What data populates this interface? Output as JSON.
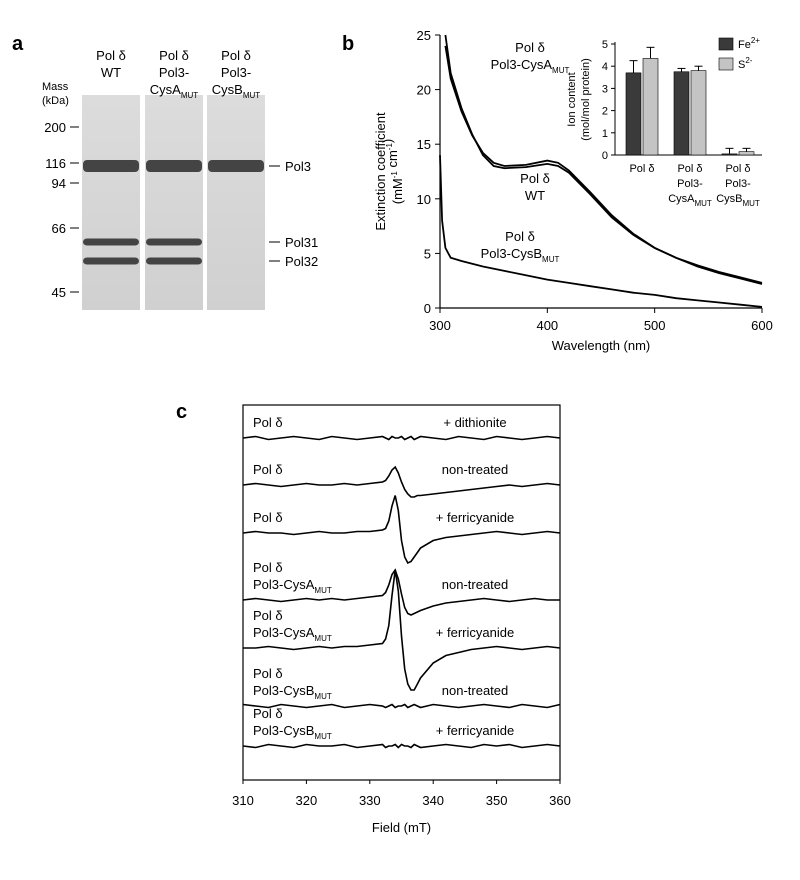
{
  "panel_labels": [
    "a",
    "b",
    "c"
  ],
  "gel": {
    "mass_title": [
      "Mass",
      "(kDa)"
    ],
    "lanes": [
      [
        [
          {
            "t": "Pol δ"
          }
        ],
        [
          {
            "t": "WT"
          }
        ]
      ],
      [
        [
          {
            "t": "Pol δ"
          }
        ],
        [
          {
            "t": "Pol3-"
          }
        ],
        [
          {
            "t": "CysA",
            "sub": "MUT"
          }
        ]
      ],
      [
        [
          {
            "t": "Pol δ"
          }
        ],
        [
          {
            "t": "Pol3-"
          }
        ],
        [
          {
            "t": "CysB",
            "sub": "MUT"
          }
        ]
      ]
    ],
    "markers": [
      200,
      116,
      94,
      66,
      45
    ],
    "bands": [
      "Pol3",
      "Pol31",
      "Pol32"
    ]
  },
  "chart_data": [
    {
      "type": "line",
      "xlabel": "Wavelength (nm)",
      "ylabel": [
        [
          {
            "t": "Extinction coefficient"
          }
        ],
        [
          {
            "t": "(mM",
            "sup": "-1"
          },
          {
            "t": " cm",
            "sup": "-1"
          },
          {
            "t": ")"
          }
        ]
      ],
      "xlim": [
        300,
        600
      ],
      "xticks": [
        300,
        400,
        500,
        600
      ],
      "ylim": [
        0,
        25
      ],
      "yticks": [
        0,
        5,
        10,
        15,
        20,
        25
      ],
      "series": [
        {
          "label": [
            [
              {
                "t": "Pol δ"
              }
            ],
            [
              {
                "t": "WT"
              }
            ]
          ],
          "color": "#000000",
          "x": [
            305,
            310,
            320,
            330,
            340,
            350,
            360,
            380,
            400,
            410,
            420,
            440,
            460,
            480,
            500,
            520,
            540,
            560,
            580,
            600
          ],
          "values": [
            24,
            21,
            18,
            15.8,
            14.2,
            13.3,
            13.0,
            13.1,
            13.5,
            13.3,
            12.6,
            10.6,
            8.5,
            6.8,
            5.5,
            4.6,
            3.9,
            3.3,
            2.8,
            2.3
          ]
        },
        {
          "label": [
            [
              {
                "t": "Pol δ"
              }
            ],
            [
              {
                "t": "Pol3-CysA",
                "sub": "MUT"
              }
            ]
          ],
          "color": "#000000",
          "x": [
            305,
            310,
            320,
            330,
            340,
            350,
            360,
            380,
            400,
            410,
            420,
            440,
            460,
            480,
            500,
            520,
            540,
            560,
            580,
            600
          ],
          "values": [
            25,
            21.5,
            18.3,
            15.9,
            14.0,
            13.0,
            12.8,
            12.9,
            13.2,
            13.0,
            12.4,
            10.4,
            8.3,
            6.7,
            5.5,
            4.6,
            3.8,
            3.2,
            2.7,
            2.2
          ]
        },
        {
          "label": [
            [
              {
                "t": "Pol δ"
              }
            ],
            [
              {
                "t": "Pol3-CysB",
                "sub": "MUT"
              }
            ]
          ],
          "color": "#000000",
          "x": [
            300,
            302,
            305,
            310,
            320,
            340,
            360,
            380,
            400,
            420,
            440,
            460,
            480,
            500,
            520,
            540,
            560,
            580,
            600
          ],
          "values": [
            14,
            8,
            5.5,
            4.6,
            4.3,
            3.8,
            3.4,
            3.0,
            2.6,
            2.3,
            2.0,
            1.7,
            1.4,
            1.2,
            0.9,
            0.7,
            0.5,
            0.3,
            0.1
          ]
        }
      ]
    },
    {
      "type": "bar",
      "ylabel": [
        [
          {
            "t": "Ion content"
          }
        ],
        [
          {
            "t": "(mol/mol protein)"
          }
        ]
      ],
      "categories": [
        [
          [
            {
              "t": "Pol δ"
            }
          ]
        ],
        [
          [
            {
              "t": "Pol δ"
            }
          ],
          [
            {
              "t": "Pol3-"
            }
          ],
          [
            {
              "t": "CysA",
              "sub": "MUT"
            }
          ]
        ],
        [
          [
            {
              "t": "Pol δ"
            }
          ],
          [
            {
              "t": "Pol3-"
            }
          ],
          [
            {
              "t": "CysB",
              "sub": "MUT"
            }
          ]
        ]
      ],
      "ylim": [
        0,
        5
      ],
      "yticks": [
        0,
        1,
        2,
        3,
        4,
        5
      ],
      "legend": "right",
      "series": [
        {
          "name": [
            {
              "t": "Fe",
              "sup": "2+"
            }
          ],
          "color": "#3a3a3a",
          "values": [
            3.7,
            3.75,
            0.05
          ],
          "errors": [
            0.55,
            0.15,
            0.25
          ]
        },
        {
          "name": [
            {
              "t": "S",
              "sup": "2-"
            }
          ],
          "color": "#c4c4c4",
          "values": [
            4.35,
            3.8,
            0.15
          ],
          "errors": [
            0.5,
            0.2,
            0.15
          ]
        }
      ]
    },
    {
      "type": "line",
      "xlabel": "Field (mT)",
      "xlim": [
        310,
        360
      ],
      "xticks": [
        310,
        320,
        330,
        340,
        350,
        360
      ],
      "x": [
        310,
        312,
        314,
        316,
        318,
        320,
        322,
        324,
        326,
        328,
        330,
        332,
        332.5,
        333,
        333.5,
        334,
        334.5,
        335,
        335.5,
        336,
        336.5,
        337,
        337.5,
        338,
        340,
        342,
        344,
        346,
        348,
        350,
        352,
        354,
        356,
        358,
        360
      ],
      "series": [
        {
          "label": [
            [
              {
                "t": "Pol δ"
              }
            ]
          ],
          "condition": "+ dithionite",
          "color": "#000000",
          "values": [
            0,
            1,
            -1,
            0,
            1,
            0,
            -1,
            1,
            0,
            -1,
            0,
            1,
            0,
            -1,
            1,
            0,
            0,
            1,
            -1,
            0,
            1,
            -1,
            0,
            1,
            0,
            -1,
            1,
            0,
            -1,
            1,
            0,
            -1,
            0,
            1,
            0
          ]
        },
        {
          "label": [
            [
              {
                "t": "Pol δ"
              }
            ]
          ],
          "condition": "non-treated",
          "color": "#000000",
          "values": [
            0,
            1,
            0,
            -1,
            0,
            1,
            0,
            0,
            1,
            0,
            1,
            2,
            3,
            6,
            10,
            12,
            8,
            2,
            -3,
            -6,
            -8,
            -8,
            -7,
            -7,
            -6,
            -5,
            -4,
            -3,
            -2,
            -1,
            0,
            -1,
            0,
            1,
            0
          ]
        },
        {
          "label": [
            [
              {
                "t": "Pol δ"
              }
            ]
          ],
          "condition": "+ ferricyanide",
          "color": "#000000",
          "values": [
            0,
            1,
            0,
            0,
            -1,
            0,
            1,
            0,
            0,
            1,
            1,
            2,
            3,
            8,
            18,
            25,
            15,
            -5,
            -16,
            -20,
            -19,
            -16,
            -13,
            -10,
            -5,
            -3,
            -2,
            -1,
            0,
            1,
            0,
            -1,
            0,
            1,
            0
          ]
        },
        {
          "label": [
            [
              {
                "t": "Pol δ"
              }
            ],
            [
              {
                "t": "Pol3-CysA",
                "sub": "MUT"
              }
            ]
          ],
          "condition": "non-treated",
          "color": "#000000",
          "values": [
            0,
            1,
            0,
            -1,
            0,
            1,
            0,
            1,
            0,
            1,
            2,
            3,
            5,
            10,
            17,
            20,
            14,
            4,
            -5,
            -9,
            -10,
            -9,
            -8,
            -7,
            -4,
            -2,
            -1,
            0,
            1,
            0,
            -1,
            0,
            1,
            0,
            0
          ]
        },
        {
          "label": [
            [
              {
                "t": "Pol δ"
              }
            ],
            [
              {
                "t": "Pol3-CysA",
                "sub": "MUT"
              }
            ]
          ],
          "condition": "+ ferricyanide",
          "color": "#000000",
          "values": [
            0,
            0,
            1,
            0,
            -1,
            0,
            1,
            0,
            1,
            1,
            2,
            3,
            6,
            15,
            35,
            52,
            38,
            8,
            -14,
            -24,
            -28,
            -28,
            -24,
            -20,
            -10,
            -5,
            -3,
            -1,
            0,
            1,
            0,
            -1,
            0,
            1,
            0
          ]
        },
        {
          "label": [
            [
              {
                "t": "Pol δ"
              }
            ],
            [
              {
                "t": "Pol3-CysB",
                "sub": "MUT"
              }
            ]
          ],
          "condition": "non-treated",
          "color": "#000000",
          "values": [
            1,
            0,
            -1,
            1,
            0,
            -1,
            0,
            1,
            -1,
            0,
            1,
            0,
            -1,
            0,
            1,
            -1,
            0,
            0,
            1,
            -1,
            0,
            1,
            0,
            -1,
            1,
            0,
            -1,
            0,
            1,
            0,
            -1,
            1,
            0,
            -1,
            1
          ]
        },
        {
          "label": [
            [
              {
                "t": "Pol δ"
              }
            ],
            [
              {
                "t": "Pol3-CysB",
                "sub": "MUT"
              }
            ]
          ],
          "condition": "+ ferricyanide",
          "color": "#000000",
          "values": [
            0,
            -1,
            1,
            0,
            -1,
            1,
            0,
            0,
            1,
            -1,
            0,
            1,
            -1,
            0,
            0,
            1,
            -1,
            1,
            0,
            0,
            -1,
            1,
            0,
            -1,
            0,
            1,
            0,
            -1,
            1,
            0,
            1,
            -1,
            0,
            1,
            0
          ]
        }
      ]
    }
  ]
}
